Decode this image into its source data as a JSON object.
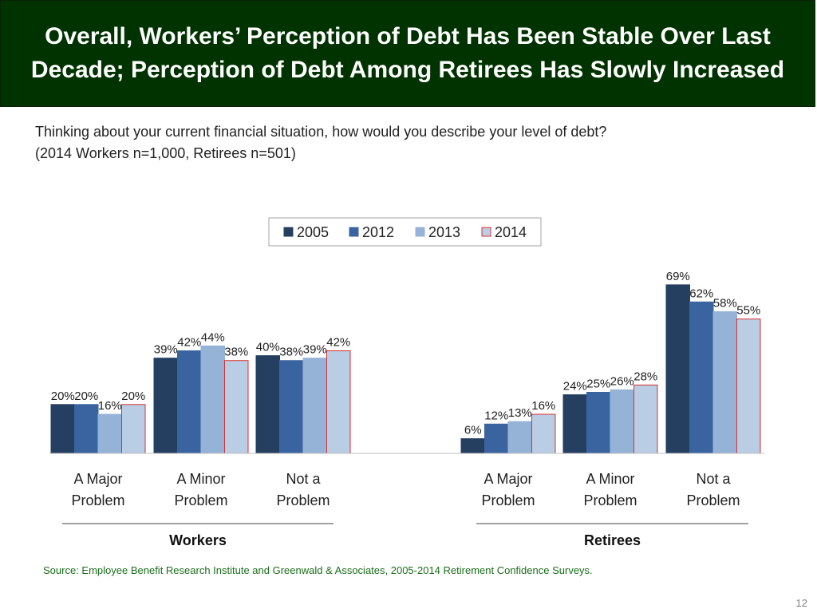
{
  "header": {
    "title_line1": "Overall, Workers’ Perception of Debt Has Been Stable Over Last",
    "title_line2": "Decade; Perception of Debt Among Retirees Has Slowly Increased"
  },
  "subtitle": {
    "line1": "Thinking about your current financial situation, how would you describe your level of debt?",
    "line2": "(2014 Workers n=1,000, Retirees n=501)"
  },
  "colors": {
    "title_bg": "#003300",
    "series": [
      "#243f60",
      "#3a64a0",
      "#95b3d7",
      "#b9cde5"
    ],
    "series_border": [
      "#243f60",
      "#3a64a0",
      "#95b3d7",
      "#d93030"
    ]
  },
  "chart_data": {
    "type": "bar",
    "groups": [
      {
        "name": "Workers",
        "categories": [
          "A Major Problem",
          "A Minor Problem",
          "Not a Problem"
        ]
      },
      {
        "name": "Retirees",
        "categories": [
          "A Major Problem",
          "A Minor Problem",
          "Not a Problem"
        ]
      }
    ],
    "category_lines": [
      [
        "A Major",
        "Problem"
      ],
      [
        "A Minor",
        "Problem"
      ],
      [
        "Not a",
        "Problem"
      ]
    ],
    "series": [
      {
        "name": "2005",
        "values": [
          20,
          39,
          40,
          6,
          24,
          69
        ]
      },
      {
        "name": "2012",
        "values": [
          20,
          42,
          38,
          12,
          25,
          62
        ]
      },
      {
        "name": "2013",
        "values": [
          16,
          44,
          39,
          13,
          26,
          58
        ]
      },
      {
        "name": "2014",
        "values": [
          20,
          38,
          42,
          16,
          28,
          55
        ]
      }
    ],
    "value_suffix": "%",
    "ylim": [
      0,
      75
    ],
    "legend_position": "top-center",
    "grid": false
  },
  "footer": {
    "source": "Source:  Employee Benefit Research Institute and Greenwald & Associates, 2005-2014 Retirement Confidence Surveys.",
    "page_number": "12"
  }
}
